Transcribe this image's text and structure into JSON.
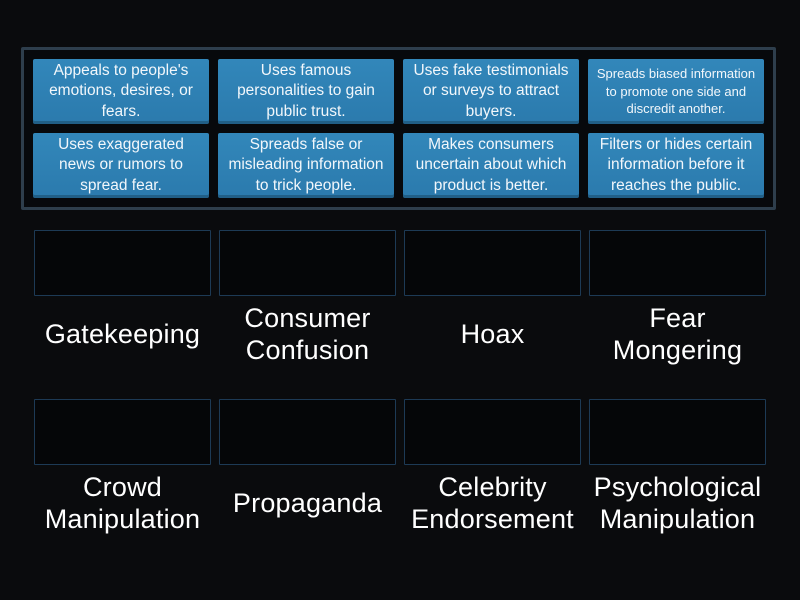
{
  "theme": {
    "background_color": "#0a0b0d",
    "card_color": "#2e80b3",
    "card_text_color": "#f2f7fb",
    "panel_border_color": "#2e3e4c",
    "slot_border_color": "#1d3a55",
    "label_color": "#ffffff"
  },
  "keyword_panel": {
    "cards": [
      {
        "text": "Appeals to people's emotions, desires, or fears.",
        "size": "normal"
      },
      {
        "text": "Uses famous personalities to gain public trust.",
        "size": "normal"
      },
      {
        "text": "Uses fake testimonials or surveys to attract buyers.",
        "size": "normal"
      },
      {
        "text": "Spreads biased information to promote one side and discredit another.",
        "size": "small"
      },
      {
        "text": "Uses exaggerated news or rumors to spread fear.",
        "size": "normal"
      },
      {
        "text": "Spreads false or misleading information to trick people.",
        "size": "normal"
      },
      {
        "text": "Makes consumers uncertain about which product is better.",
        "size": "normal"
      },
      {
        "text": "Filters or hides certain information before it reaches the public.",
        "size": "normal"
      }
    ]
  },
  "match_groups": [
    {
      "slots": [
        {
          "label": "Gatekeeping"
        },
        {
          "label": "Consumer Confusion"
        },
        {
          "label": "Hoax"
        },
        {
          "label": "Fear Mongering"
        }
      ]
    },
    {
      "slots": [
        {
          "label": "Crowd Manipulation"
        },
        {
          "label": "Propaganda"
        },
        {
          "label": "Celebrity Endorsement"
        },
        {
          "label": "Psychological Manipulation"
        }
      ]
    }
  ]
}
